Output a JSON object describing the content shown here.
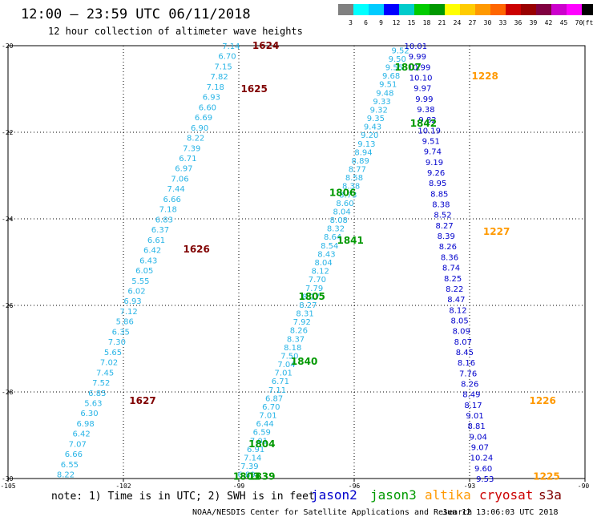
{
  "header": {
    "title": "12:00 — 23:59 UTC 06/11/2018",
    "subtitle": "12 hour collection of altimeter wave heights"
  },
  "footer": {
    "note": "note: 1) Time is in UTC; 2) SWH is in feet",
    "credit": "NOAA/NESDIS Center for Satellite Applications and Research",
    "timestamp": "Jun 12 13:06:03 UTC 2018"
  },
  "satellites": [
    {
      "label": "jason2",
      "color": "#0000cc"
    },
    {
      "label": "jason3",
      "color": "#009900"
    },
    {
      "label": "altika",
      "color": "#ff9900"
    },
    {
      "label": "cryosat",
      "color": "#cc0000"
    },
    {
      "label": "s3a",
      "color": "#800000"
    }
  ],
  "colorbar": {
    "labels": [
      "3",
      "6",
      "9",
      "12",
      "15",
      "18",
      "21",
      "24",
      "27",
      "30",
      "33",
      "36",
      "39",
      "42",
      "45",
      "70",
      "(ft)"
    ],
    "colors": [
      "#808080",
      "#00ffff",
      "#00ccff",
      "#0000ff",
      "#00cccc",
      "#00cc00",
      "#009900",
      "#ffff00",
      "#ffcc00",
      "#ff9900",
      "#ff6600",
      "#cc0000",
      "#990000",
      "#800040",
      "#cc00cc",
      "#ff00ff",
      "#000000"
    ]
  },
  "chart_data": {
    "type": "scatter",
    "title": "12:00 — 23:59 UTC 06/11/2018",
    "subtitle": "12 hour collection of altimeter wave heights",
    "x_ticks": [
      "-105",
      "-102",
      "-99",
      "-96",
      "-93",
      "-90"
    ],
    "y_ticks": [
      "-20",
      "-22",
      "-24",
      "-26",
      "-28",
      "-30"
    ],
    "xlim": [
      -105,
      -90
    ],
    "ylim": [
      -30,
      -20
    ],
    "grid": true,
    "series": [
      {
        "name": "s3a",
        "color": "#28b4e6",
        "start": [
          -99.2,
          -20.0
        ],
        "end": [
          -103.5,
          -29.9
        ],
        "values": [
          "7.14",
          "6.70",
          "7.15",
          "7.82",
          "7.18",
          "6.93",
          "6.60",
          "6.69",
          "6.90",
          "8.22",
          "7.39",
          "6.71",
          "6.97",
          "7.06",
          "7.44",
          "6.66",
          "7.18",
          "6.83",
          "6.37",
          "6.61",
          "6.42",
          "6.43",
          "6.05",
          "5.55",
          "6.02",
          "6.93",
          "7.12",
          "5.86",
          "6.35",
          "7.30",
          "5.65",
          "7.02",
          "7.45",
          "7.52",
          "6.85",
          "5.63",
          "6.30",
          "6.98",
          "6.42",
          "7.07",
          "6.66",
          "6.55",
          "8.22"
        ]
      },
      {
        "name": "jason3",
        "color": "#28b4e6",
        "start": [
          -94.8,
          -20.1
        ],
        "end": [
          -98.8,
          -29.9
        ],
        "values": [
          "9.52",
          "9.50",
          "9.55",
          "9.68",
          "9.51",
          "9.48",
          "9.33",
          "9.32",
          "9.35",
          "9.43",
          "9.20",
          "9.13",
          "8.94",
          "8.89",
          "8.77",
          "8.58",
          "8.38",
          "8.73",
          "8.60",
          "8.04",
          "8.08",
          "8.32",
          "8.64",
          "8.54",
          "8.43",
          "8.04",
          "8.12",
          "7.70",
          "7.79",
          "8.17",
          "8.27",
          "8.31",
          "7.92",
          "8.26",
          "8.37",
          "8.18",
          "7.50",
          "7.04",
          "7.01",
          "6.71",
          "7.11",
          "6.87",
          "6.70",
          "7.01",
          "6.44",
          "6.59",
          "7.01",
          "6.91",
          "7.14",
          "7.39",
          "6.89"
        ]
      },
      {
        "name": "jason2",
        "color": "#0000cc",
        "start": [
          -94.4,
          -20.0
        ],
        "end": [
          -92.6,
          -30.0
        ],
        "values": [
          "10.01",
          "9.99",
          "10.99",
          "10.10",
          "9.97",
          "9.99",
          "9.38",
          "9.82",
          "10.19",
          "9.51",
          "9.74",
          "9.19",
          "9.26",
          "8.95",
          "8.85",
          "8.38",
          "8.52",
          "8.27",
          "8.39",
          "8.26",
          "8.36",
          "8.74",
          "8.25",
          "8.22",
          "8.47",
          "8.12",
          "8.05",
          "8.09",
          "8.07",
          "8.45",
          "8.16",
          "7.76",
          "8.26",
          "8.49",
          "8.17",
          "9.01",
          "8.81",
          "9.04",
          "9.07",
          "10.24",
          "9.60",
          "9.53"
        ]
      }
    ],
    "time_labels": [
      {
        "text": "1624",
        "sat": "s3a",
        "lon": -98.3,
        "lat": -20.0
      },
      {
        "text": "1625",
        "sat": "s3a",
        "lon": -98.6,
        "lat": -21.0
      },
      {
        "text": "1626",
        "sat": "s3a",
        "lon": -100.1,
        "lat": -24.7
      },
      {
        "text": "1627",
        "sat": "s3a",
        "lon": -101.5,
        "lat": -28.2
      },
      {
        "text": "1807",
        "sat": "jason3",
        "lon": -94.6,
        "lat": -20.5
      },
      {
        "text": "1842",
        "sat": "jason3",
        "lon": -94.2,
        "lat": -21.8
      },
      {
        "text": "1806",
        "sat": "jason3",
        "lon": -96.3,
        "lat": -23.4
      },
      {
        "text": "1841",
        "sat": "jason3",
        "lon": -96.1,
        "lat": -24.5
      },
      {
        "text": "1805",
        "sat": "jason3",
        "lon": -97.1,
        "lat": -25.8
      },
      {
        "text": "1840",
        "sat": "jason3",
        "lon": -97.3,
        "lat": -27.3
      },
      {
        "text": "1804",
        "sat": "jason3",
        "lon": -98.4,
        "lat": -29.2
      },
      {
        "text": "1803",
        "sat": "jason3",
        "lon": -98.8,
        "lat": -29.95
      },
      {
        "text": "1839",
        "sat": "jason3",
        "lon": -98.4,
        "lat": -29.95
      },
      {
        "text": "1228",
        "sat": "altika",
        "lon": -92.6,
        "lat": -20.7
      },
      {
        "text": "1227",
        "sat": "altika",
        "lon": -92.3,
        "lat": -24.3
      },
      {
        "text": "1226",
        "sat": "altika",
        "lon": -91.1,
        "lat": -28.2
      },
      {
        "text": "1225",
        "sat": "altika",
        "lon": -91.0,
        "lat": -29.95
      }
    ]
  }
}
